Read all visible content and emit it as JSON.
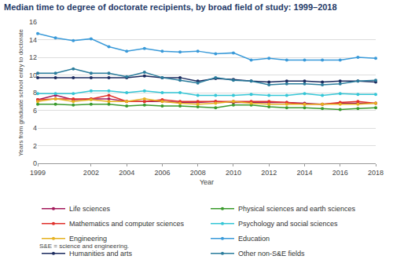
{
  "chart_data": {
    "type": "line",
    "title": "Median time to degree of doctorate recipients, by broad field of study: 1999–2018",
    "x_label": "Year",
    "y_label": "Years from graduate school entry to doctorate",
    "footnote": "S&E = science and engineering.",
    "x": [
      1999,
      2000,
      2001,
      2002,
      2003,
      2004,
      2005,
      2006,
      2007,
      2008,
      2009,
      2010,
      2011,
      2012,
      2013,
      2014,
      2015,
      2016,
      2017,
      2018
    ],
    "xlim": [
      1999,
      2018
    ],
    "xticks": [
      1999,
      2002,
      2004,
      2006,
      2008,
      2010,
      2012,
      2014,
      2016,
      2018
    ],
    "ylim": [
      0,
      16
    ],
    "yticks": [
      0,
      2,
      4,
      6,
      8,
      10,
      12,
      14,
      16
    ],
    "grid": true,
    "legend": "bottom",
    "marker": "circle",
    "line_style": "solid",
    "series": [
      {
        "name": "Life sciences",
        "color": "#a3195b",
        "values": [
          7.2,
          7.7,
          7.2,
          7.3,
          7.3,
          7.0,
          7.0,
          7.0,
          6.9,
          6.9,
          7.0,
          6.9,
          6.9,
          6.9,
          6.9,
          6.8,
          6.7,
          6.8,
          6.8,
          6.8
        ]
      },
      {
        "name": "Physical sciences and earth sciences",
        "color": "#3a9a2c",
        "values": [
          6.7,
          6.7,
          6.6,
          6.7,
          6.7,
          6.5,
          6.6,
          6.5,
          6.5,
          6.4,
          6.3,
          6.6,
          6.6,
          6.4,
          6.3,
          6.3,
          6.2,
          6.1,
          6.2,
          6.3
        ]
      },
      {
        "name": "Mathematics and computer sciences",
        "color": "#e0302a",
        "values": [
          7.2,
          7.3,
          7.3,
          7.3,
          7.7,
          7.0,
          7.0,
          7.2,
          7.0,
          7.0,
          7.0,
          7.0,
          7.0,
          7.0,
          6.9,
          6.7,
          6.7,
          6.9,
          7.0,
          6.8
        ]
      },
      {
        "name": "Psychology and social sciences",
        "color": "#35c6d6",
        "values": [
          7.9,
          7.9,
          7.9,
          8.2,
          8.2,
          8.0,
          8.2,
          8.0,
          8.0,
          7.7,
          7.7,
          7.7,
          7.8,
          7.7,
          7.7,
          7.9,
          7.7,
          7.9,
          7.8,
          7.8
        ]
      },
      {
        "name": "Engineering",
        "color": "#e6b120",
        "values": [
          7.0,
          7.3,
          7.0,
          7.2,
          7.0,
          7.0,
          7.3,
          7.0,
          6.8,
          6.7,
          6.8,
          7.0,
          6.8,
          6.7,
          6.7,
          6.7,
          6.7,
          6.7,
          6.7,
          6.8
        ]
      },
      {
        "name": "Education",
        "color": "#3a9ad9",
        "values": [
          14.7,
          14.2,
          13.9,
          14.1,
          13.2,
          12.7,
          13.0,
          12.7,
          12.6,
          12.7,
          12.4,
          12.5,
          11.7,
          11.9,
          11.7,
          11.7,
          11.7,
          11.7,
          12.0,
          11.9
        ]
      },
      {
        "name": "Humanities and arts",
        "color": "#1b2a5e",
        "values": [
          9.7,
          9.7,
          9.7,
          9.7,
          9.7,
          9.7,
          9.9,
          9.7,
          9.7,
          9.3,
          9.6,
          9.5,
          9.3,
          9.2,
          9.3,
          9.3,
          9.2,
          9.3,
          9.3,
          9.2
        ]
      },
      {
        "name": "Other non-S&E fields",
        "color": "#2a7c9c",
        "values": [
          10.2,
          10.2,
          10.7,
          10.2,
          10.2,
          9.8,
          10.3,
          9.7,
          9.4,
          9.1,
          9.7,
          9.4,
          9.3,
          8.9,
          9.0,
          9.0,
          8.9,
          9.0,
          9.3,
          9.4
        ]
      }
    ]
  }
}
